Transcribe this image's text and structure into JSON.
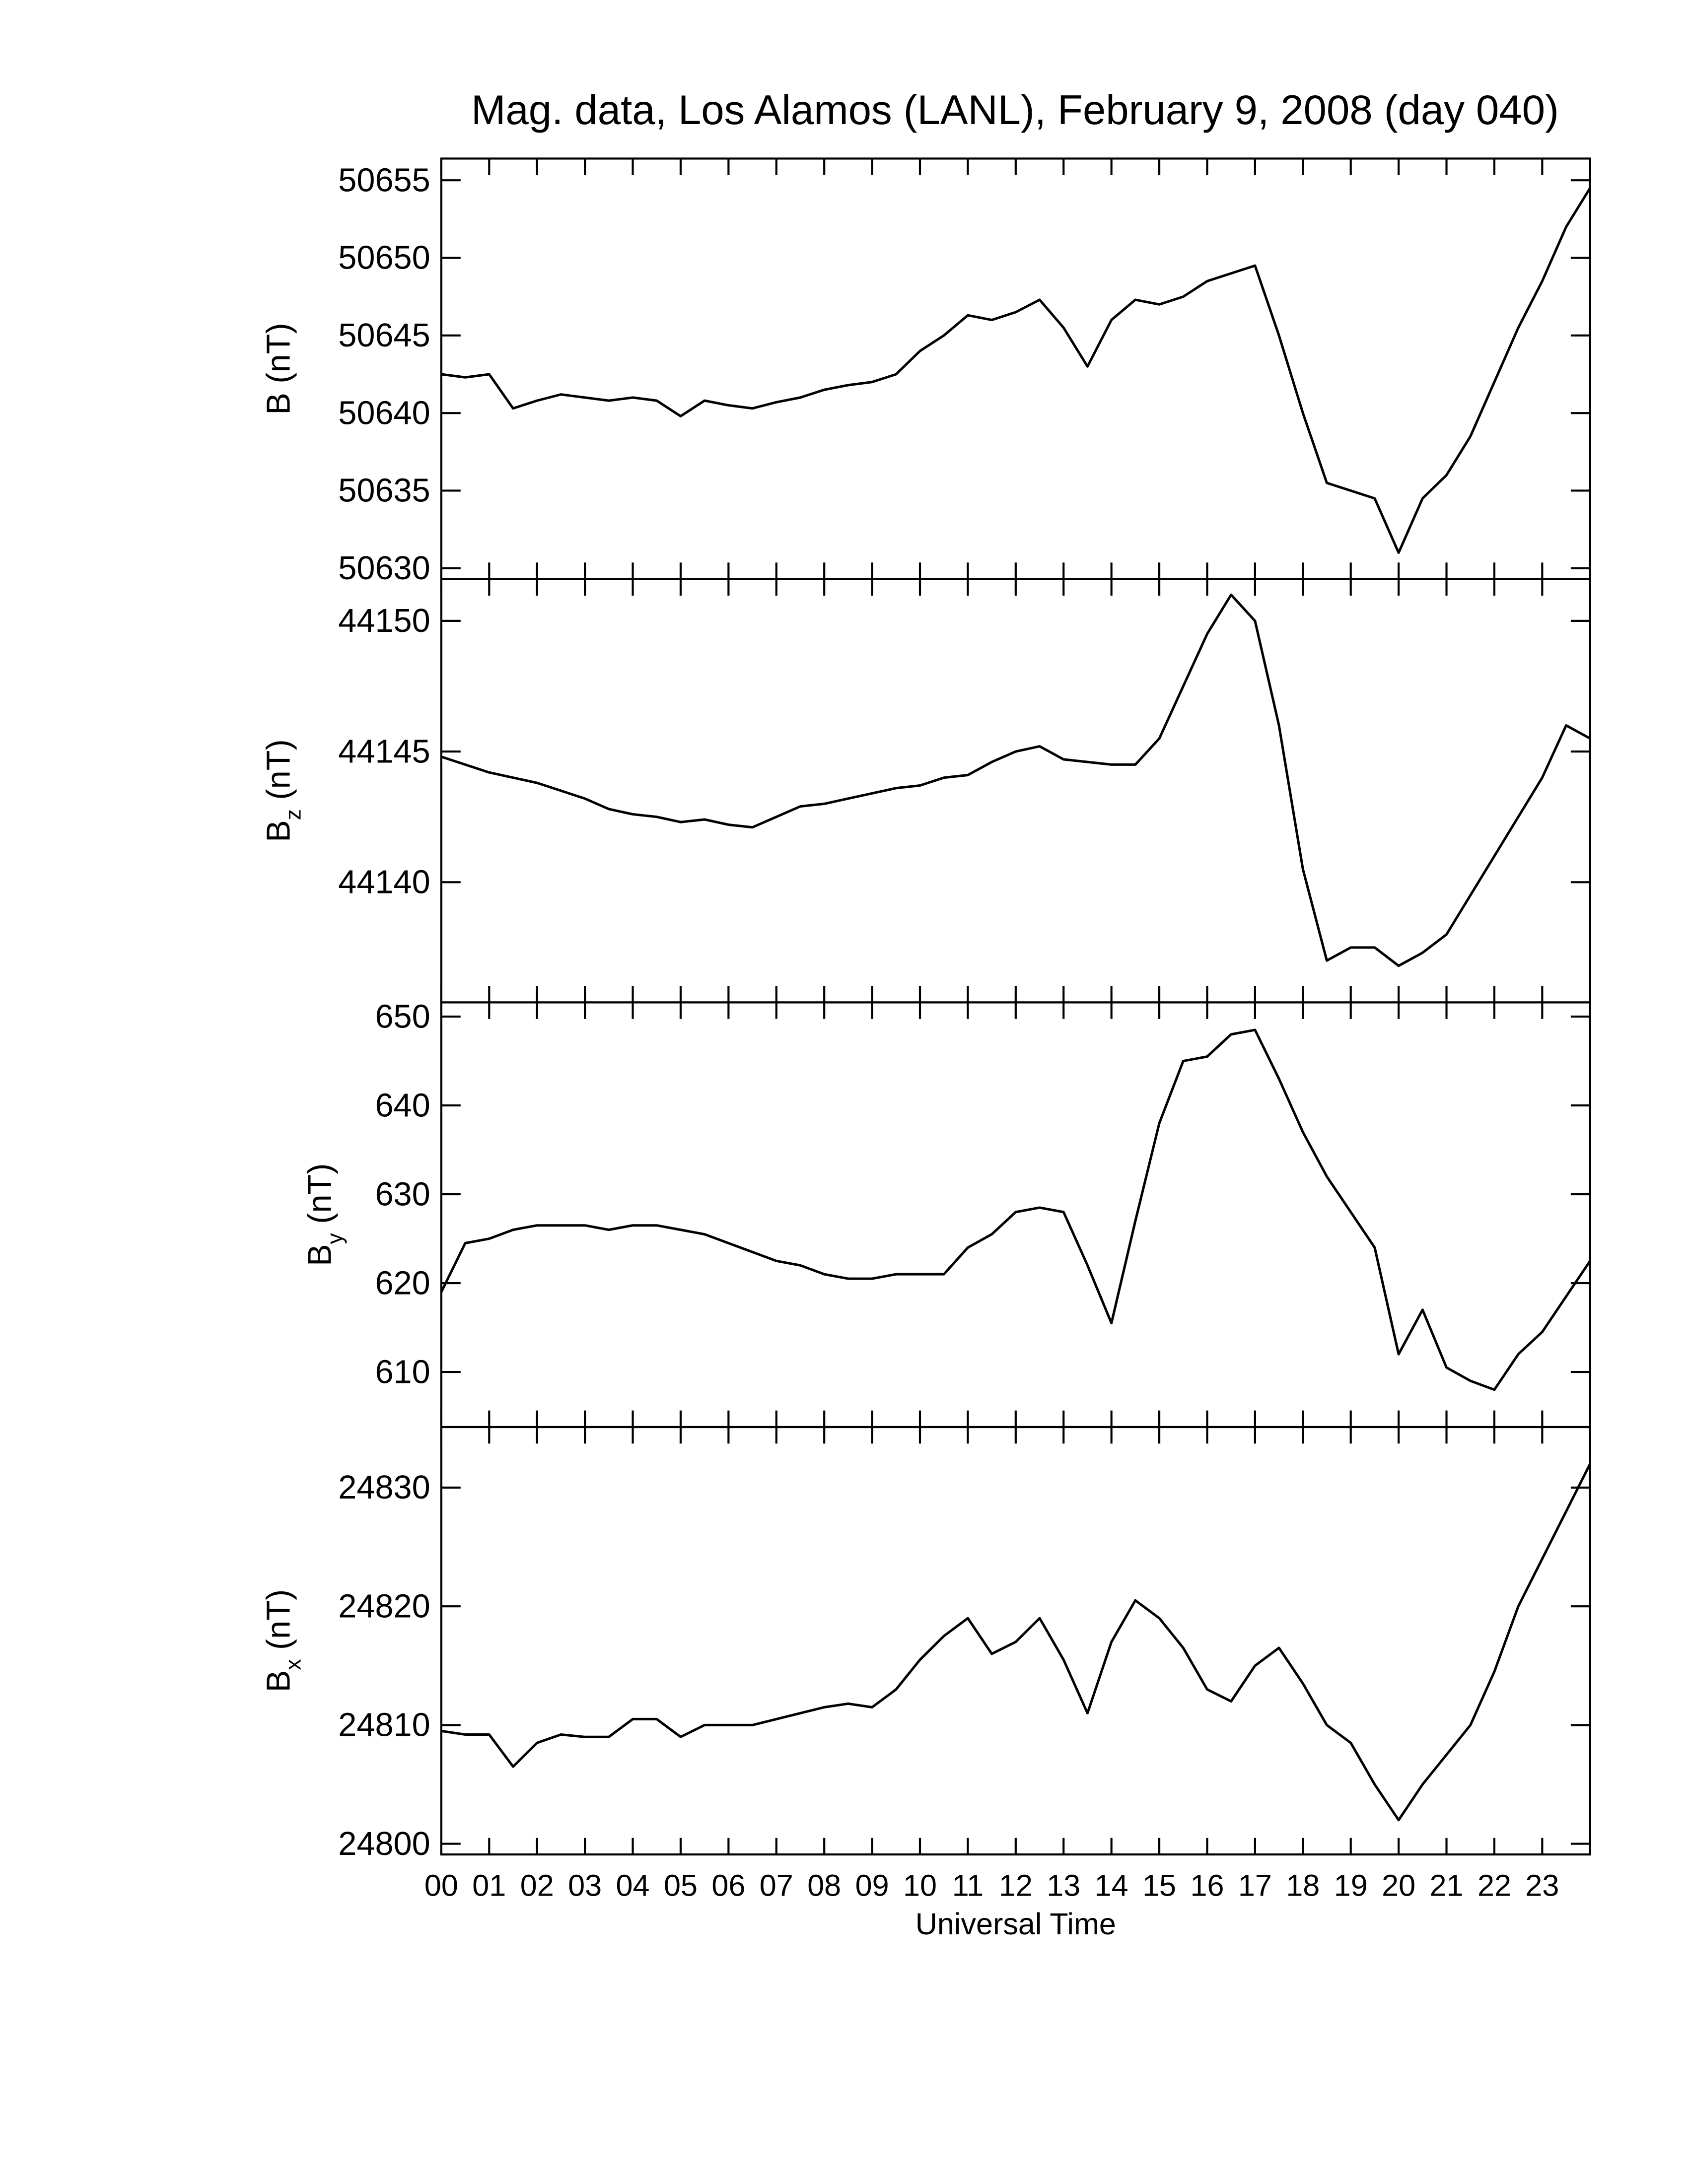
{
  "chart_data": [
    {
      "type": "line",
      "title": "Mag. data, Los Alamos (LANL), February 9, 2008 (day 040)",
      "ylabel": "B",
      "ylabel_unit": "(nT)",
      "x": [
        0,
        0.5,
        1,
        1.5,
        2,
        2.5,
        3,
        3.5,
        4,
        4.5,
        5,
        5.5,
        6,
        6.5,
        7,
        7.5,
        8,
        8.5,
        9,
        9.5,
        10,
        10.5,
        11,
        11.5,
        12,
        12.5,
        13,
        13.5,
        14,
        14.5,
        15,
        15.5,
        16,
        16.5,
        17,
        17.5,
        18,
        18.5,
        19,
        19.5,
        20,
        20.5,
        21,
        21.5,
        22,
        22.5,
        23,
        23.5,
        24
      ],
      "values": [
        50642.5,
        50642.3,
        50642.5,
        50640.3,
        50640.8,
        50641.2,
        50641,
        50640.8,
        50641,
        50640.8,
        50639.8,
        50640.8,
        50640.5,
        50640.3,
        50640.7,
        50641,
        50641.5,
        50641.8,
        50642,
        50642.5,
        50644,
        50645,
        50646.3,
        50646,
        50646.5,
        50647.3,
        50645.5,
        50643,
        50646,
        50647.3,
        50647,
        50647.5,
        50648.5,
        50649,
        50649.5,
        50645,
        50640,
        50635.5,
        50635,
        50634.5,
        50631,
        50634.5,
        50636,
        50638.5,
        50642,
        50645.5,
        50648.5,
        50652,
        50654.5
      ],
      "color": "#000000",
      "xlim": [
        0,
        24
      ],
      "ylim": [
        50629.3,
        50656.4
      ],
      "yticks": [
        50630,
        50635,
        50640,
        50645,
        50650,
        50655
      ]
    },
    {
      "type": "line",
      "ylabel": "B",
      "ylabel_sub": "z",
      "ylabel_unit": "(nT)",
      "x": [
        0,
        0.5,
        1,
        1.5,
        2,
        2.5,
        3,
        3.5,
        4,
        4.5,
        5,
        5.5,
        6,
        6.5,
        7,
        7.5,
        8,
        8.5,
        9,
        9.5,
        10,
        10.5,
        11,
        11.5,
        12,
        12.5,
        13,
        13.5,
        14,
        14.5,
        15,
        15.5,
        16,
        16.5,
        17,
        17.5,
        18,
        18.5,
        19,
        19.5,
        20,
        20.5,
        21,
        21.5,
        22,
        22.5,
        23,
        23.5,
        24
      ],
      "values": [
        44144.8,
        44144.5,
        44144.2,
        44144,
        44143.8,
        44143.5,
        44143.2,
        44142.8,
        44142.6,
        44142.5,
        44142.3,
        44142.4,
        44142.2,
        44142.1,
        44142.5,
        44142.9,
        44143,
        44143.2,
        44143.4,
        44143.6,
        44143.7,
        44144,
        44144.1,
        44144.6,
        44145,
        44145.2,
        44144.7,
        44144.6,
        44144.5,
        44144.5,
        44145.5,
        44147.5,
        44149.5,
        44151,
        44150,
        44146,
        44140.5,
        44137,
        44137.5,
        44137.5,
        44136.8,
        44137.3,
        44138,
        44139.5,
        44141,
        44142.5,
        44144,
        44146,
        44145.5
      ],
      "color": "#000000",
      "xlim": [
        0,
        24
      ],
      "ylim": [
        44135.4,
        44151.6
      ],
      "yticks": [
        44140,
        44145,
        44150
      ]
    },
    {
      "type": "line",
      "ylabel": "B",
      "ylabel_sub": "y",
      "ylabel_unit": "(nT)",
      "x": [
        0,
        0.5,
        1,
        1.5,
        2,
        2.5,
        3,
        3.5,
        4,
        4.5,
        5,
        5.5,
        6,
        6.5,
        7,
        7.5,
        8,
        8.5,
        9,
        9.5,
        10,
        10.5,
        11,
        11.5,
        12,
        12.5,
        13,
        13.5,
        14,
        14.5,
        15,
        15.5,
        16,
        16.5,
        17,
        17.5,
        18,
        18.5,
        19,
        19.5,
        20,
        20.5,
        21,
        21.5,
        22,
        22.5,
        23,
        23.5,
        24
      ],
      "values": [
        619,
        624.5,
        625,
        626,
        626.5,
        626.5,
        626.5,
        626,
        626.5,
        626.5,
        626,
        625.5,
        624.5,
        623.5,
        622.5,
        622,
        621,
        620.5,
        620.5,
        621,
        621,
        621,
        624,
        625.5,
        628,
        628.5,
        628,
        622,
        615.5,
        627,
        638,
        645,
        645.5,
        648,
        648.5,
        643,
        637,
        632,
        628,
        624,
        612,
        617,
        610.5,
        609,
        608,
        612,
        614.5,
        618.5,
        622.5
      ],
      "color": "#000000",
      "xlim": [
        0,
        24
      ],
      "ylim": [
        603.8,
        651.6
      ],
      "yticks": [
        610,
        620,
        630,
        640,
        650
      ]
    },
    {
      "type": "line",
      "ylabel": "B",
      "ylabel_sub": "x",
      "ylabel_unit": "(nT)",
      "xlabel": "Universal Time",
      "x": [
        0,
        0.5,
        1,
        1.5,
        2,
        2.5,
        3,
        3.5,
        4,
        4.5,
        5,
        5.5,
        6,
        6.5,
        7,
        7.5,
        8,
        8.5,
        9,
        9.5,
        10,
        10.5,
        11,
        11.5,
        12,
        12.5,
        13,
        13.5,
        14,
        14.5,
        15,
        15.5,
        16,
        16.5,
        17,
        17.5,
        18,
        18.5,
        19,
        19.5,
        20,
        20.5,
        21,
        21.5,
        22,
        22.5,
        23,
        23.5,
        24
      ],
      "values": [
        24809.5,
        24809.2,
        24809.2,
        24806.5,
        24808.5,
        24809.2,
        24809,
        24809,
        24810.5,
        24810.5,
        24809,
        24810,
        24810,
        24810,
        24810.5,
        24811,
        24811.5,
        24811.8,
        24811.5,
        24813,
        24815.5,
        24817.5,
        24819,
        24816,
        24817,
        24819,
        24815.5,
        24811,
        24817,
        24820.5,
        24819,
        24816.5,
        24813,
        24812,
        24815,
        24816.5,
        24813.5,
        24810,
        24808.5,
        24805,
        24802,
        24805,
        24807.5,
        24810,
        24814.5,
        24820,
        24824,
        24828,
        24832
      ],
      "color": "#000000",
      "xlim": [
        0,
        24
      ],
      "ylim": [
        24799.1,
        24835.1
      ],
      "yticks": [
        24800,
        24810,
        24820,
        24830
      ],
      "xticks": [
        {
          "value": 0,
          "label": "00"
        },
        {
          "value": 1,
          "label": "01"
        },
        {
          "value": 2,
          "label": "02"
        },
        {
          "value": 3,
          "label": "03"
        },
        {
          "value": 4,
          "label": "04"
        },
        {
          "value": 5,
          "label": "05"
        },
        {
          "value": 6,
          "label": "06"
        },
        {
          "value": 7,
          "label": "07"
        },
        {
          "value": 8,
          "label": "08"
        },
        {
          "value": 9,
          "label": "09"
        },
        10,
        11,
        12,
        13,
        14,
        15,
        16,
        17,
        18,
        19,
        20,
        21,
        22,
        23
      ]
    }
  ]
}
